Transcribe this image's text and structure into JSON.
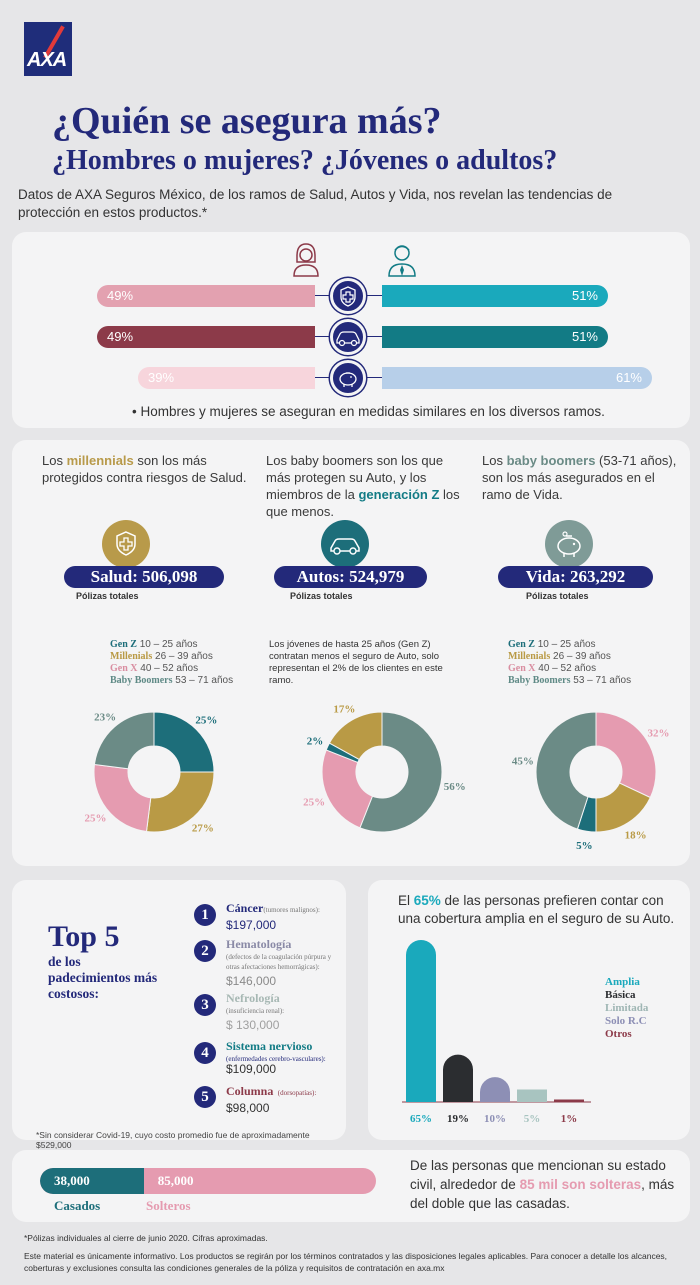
{
  "logo_text": "AXA",
  "title_line1": "¿Quién se asegura más?",
  "title_line2": "¿Hombres o mujeres? ¿Jóvenes o adultos?",
  "intro": "Datos de AXA Seguros México, de los ramos de Salud, Autos y Vida, nos revelan las tendencias de protección en estos productos.*",
  "gender": {
    "rows": [
      {
        "icon": "health-cross-icon",
        "women": "49%",
        "men": "51%",
        "women_value": 49,
        "men_value": 51,
        "women_color": "#e3a1b0",
        "men_color": "#1aa9bc"
      },
      {
        "icon": "car-icon",
        "women": "49%",
        "men": "51%",
        "women_value": 49,
        "men_value": 51,
        "women_color": "#8c3a49",
        "men_color": "#127b85"
      },
      {
        "icon": "piggy-bank-icon",
        "women": "39%",
        "men": "61%",
        "women_value": 39,
        "men_value": 61,
        "women_color": "#f7d5dc",
        "men_color": "#b7cfe9"
      }
    ],
    "note": "• Hombres y mujeres se aseguran en medidas similares en los diversos ramos."
  },
  "columns": [
    {
      "text_parts": [
        "Los ",
        "millennials",
        " son los más protegidos contra riesgos de Salud."
      ],
      "icon": "health-shield-icon",
      "icon_color": "#b89a4a",
      "pill": "Salud: 506,098",
      "sub": "Pólizas totales",
      "legend": [
        {
          "name": "Gen Z",
          "range": "10 – 25 años",
          "color": "#1d6e7a"
        },
        {
          "name": "Millenials",
          "range": "26 – 39 años",
          "color": "#b99a45"
        },
        {
          "name": "Gen X",
          "range": "40 – 52 años",
          "color": "#d98ea1"
        },
        {
          "name": "Baby Boomers",
          "range": "53 – 71 años",
          "color": "#5f8a86"
        }
      ],
      "donut": [
        {
          "label": "25%",
          "value": 25,
          "color": "#1d6e7a"
        },
        {
          "label": "27%",
          "value": 27,
          "color": "#b99a45"
        },
        {
          "label": "25%",
          "value": 25,
          "color": "#e59bb0"
        },
        {
          "label": "23%",
          "value": 23,
          "color": "#6b8b86"
        }
      ]
    },
    {
      "text_parts": [
        "Los baby boomers son los que más protegen su Auto, y los miembros de la ",
        "generación Z",
        " los que menos."
      ],
      "icon": "car-icon",
      "icon_color": "#1d6e7a",
      "pill": "Autos: 524,979",
      "sub": "Pólizas totales",
      "note": "Los jóvenes de hasta 25 años (Gen Z) contratan menos el seguro de Auto, solo representan el 2% de los clientes en este ramo.",
      "donut": [
        {
          "label": "56%",
          "value": 56,
          "color": "#6b8b86"
        },
        {
          "label": "25%",
          "value": 25,
          "color": "#e59bb0"
        },
        {
          "label": "2%",
          "value": 2,
          "color": "#1d6e7a"
        },
        {
          "label": "17%",
          "value": 17,
          "color": "#b99a45"
        }
      ]
    },
    {
      "text_parts": [
        "Los ",
        "baby boomers",
        " (53-71 años), son los más asegurados en el ramo de Vida."
      ],
      "icon": "piggy-bank-icon",
      "icon_color": "#6b8b86",
      "pill": "Vida: 263,292",
      "sub": "Pólizas totales",
      "legend": [
        {
          "name": "Gen Z",
          "range": "10 – 25 años",
          "color": "#1d6e7a"
        },
        {
          "name": "Millenials",
          "range": "26 – 39 años",
          "color": "#b99a45"
        },
        {
          "name": "Gen X",
          "range": "40 – 52 años",
          "color": "#d98ea1"
        },
        {
          "name": "Baby Boomers",
          "range": "53 – 71 años",
          "color": "#5f8a86"
        }
      ],
      "donut": [
        {
          "label": "32%",
          "value": 32,
          "color": "#e59bb0"
        },
        {
          "label": "18%",
          "value": 18,
          "color": "#b99a45"
        },
        {
          "label": "5%",
          "value": 5,
          "color": "#1d6e7a"
        },
        {
          "label": "45%",
          "value": 45,
          "color": "#6b8b86"
        }
      ]
    }
  ],
  "top5": {
    "title": "Top 5",
    "subtitle": "de los padecimientos más costosos:",
    "items": [
      {
        "n": "1",
        "name": "Cáncer",
        "detail": "(tumores malignos):",
        "cost": "$197,000",
        "dark": true
      },
      {
        "n": "2",
        "name": "Hematología",
        "detail": "(defectos de la coagulación púrpura y otras afectaciones hemorrágicas):",
        "cost": "$146,000",
        "dark": false
      },
      {
        "n": "3",
        "name": "Nefrología",
        "detail": "(insuficiencia renal):",
        "cost": "$ 130,000",
        "dark": false
      },
      {
        "n": "4",
        "name": "Sistema nervioso",
        "detail": "(enfermedades cerebro-vasculares):",
        "cost": "$109,000",
        "dark": true
      },
      {
        "n": "5",
        "name": "Columna",
        "detail": "(dorsopatías):",
        "cost": "$98,000",
        "dark": true
      }
    ],
    "note": "*Sin considerar Covid-19, cuyo costo promedio fue de aproximadamente $529,000"
  },
  "auto": {
    "text_parts": [
      "El ",
      "65%",
      " de las personas prefieren contar con una cobertura amplia en el seguro de su Auto."
    ],
    "legend": [
      {
        "name": "Amplia",
        "color": "#1aa9bc"
      },
      {
        "name": "Básica",
        "color": "#2b2d30"
      },
      {
        "name": "Limitada",
        "color": "#9fb6b4"
      },
      {
        "name": "Solo R.C",
        "color": "#8d8fb5"
      },
      {
        "name": "Otros",
        "color": "#8c3a49"
      }
    ]
  },
  "chart_data": {
    "type": "bar",
    "categories": [
      "Amplia",
      "Básica",
      "Solo R.C",
      "Limitada",
      "Otros"
    ],
    "values": [
      65,
      19,
      10,
      5,
      1
    ],
    "labels": [
      "65%",
      "19%",
      "10%",
      "5%",
      "1%"
    ],
    "colors": [
      "#1aa9bc",
      "#2b2d30",
      "#8d8fb5",
      "#a8c4c0",
      "#8c3a49"
    ],
    "ylim": [
      0,
      65
    ]
  },
  "civil": {
    "left_value": "38,000",
    "right_value": "85,000",
    "left_label": "Casados",
    "right_label": "Solteros",
    "married": 38000,
    "single": 85000,
    "text_parts": [
      "De las personas que mencionan su estado civil, alrededor de ",
      "85 mil son solteras",
      ", más del doble que las casadas."
    ]
  },
  "footnote1": "*Pólizas individuales al cierre de junio 2020. Cifras aproximadas.",
  "footnote2": "Este material es únicamente informativo. Los productos se regirán por los términos contratados y las disposiciones legales aplicables. Para conocer a detalle los alcances, coberturas y exclusiones consulta las condiciones generales de la póliza y requisitos de contratación en axa.mx"
}
